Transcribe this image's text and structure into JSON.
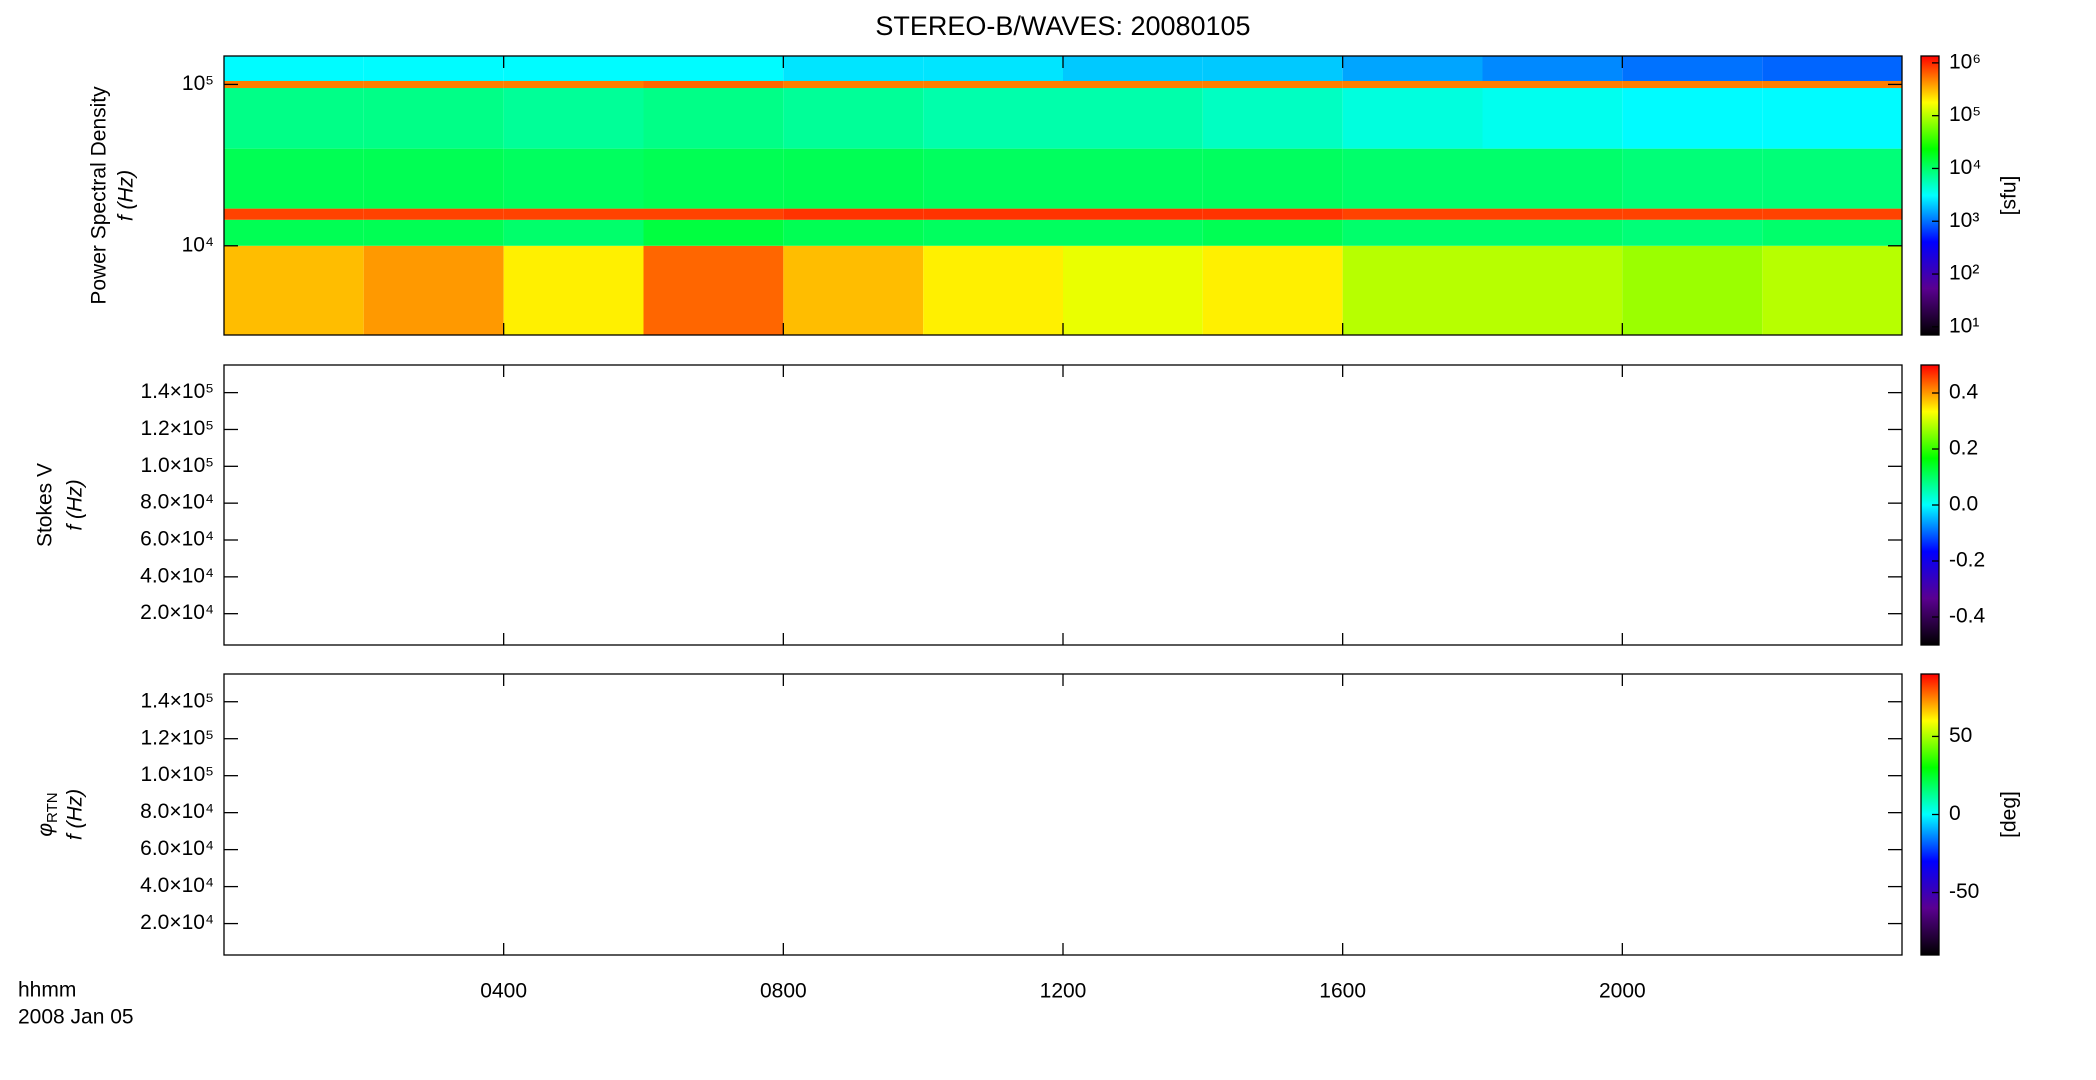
{
  "title": "STEREO-B/WAVES: 20080105",
  "x_label": [
    "hhmm",
    "2008 Jan 05"
  ],
  "xlim": [
    0,
    24
  ],
  "xticks": [
    {
      "value": 4,
      "label": "0400"
    },
    {
      "value": 8,
      "label": "0800"
    },
    {
      "value": 12,
      "label": "1200"
    },
    {
      "value": 16,
      "label": "1600"
    },
    {
      "value": 20,
      "label": "2000"
    }
  ],
  "colormap": [
    "#000000",
    "#5a0090",
    "#0000ff",
    "#00ffff",
    "#00ff00",
    "#ffff00",
    "#ff0000"
  ],
  "chart_data": [
    {
      "type": "heatmap",
      "y_label": [
        "Power Spectral Density",
        "f (Hz)"
      ],
      "log_y": true,
      "ylim": [
        2800,
        150000
      ],
      "yticks": [
        {
          "value": 10000,
          "label": "10⁴"
        },
        {
          "value": 100000,
          "label": "10⁵"
        }
      ],
      "colorbar": {
        "log": true,
        "clim": [
          7,
          1350000
        ],
        "label": "[sfu]",
        "ticks": [
          {
            "value": 10,
            "label": "10¹"
          },
          {
            "value": 100,
            "label": "10²"
          },
          {
            "value": 1000,
            "label": "10³"
          },
          {
            "value": 10000,
            "label": "10⁴"
          },
          {
            "value": 100000,
            "label": "10⁵"
          },
          {
            "value": 1000000,
            "label": "10⁶"
          }
        ]
      },
      "heatmap": {
        "time_edges": [
          0,
          2,
          4,
          6,
          8,
          10,
          12,
          14,
          16,
          18,
          20,
          22,
          24
        ],
        "frequency_edges": [
          2800,
          10000,
          14500,
          17000,
          40000,
          95000,
          105000,
          150000
        ],
        "values": [
          [
            300000,
            400000,
            200000,
            600000,
            300000,
            200000,
            150000,
            200000,
            100000,
            100000,
            80000,
            100000
          ],
          [
            12000,
            12000,
            10000,
            14000,
            12000,
            11000,
            11000,
            12000,
            10000,
            10000,
            9000,
            10000
          ],
          [
            800000,
            800000,
            800000,
            800000,
            900000,
            900000,
            900000,
            900000,
            800000,
            800000,
            800000,
            800000
          ],
          [
            12000,
            12000,
            11000,
            12000,
            12000,
            11000,
            11000,
            11000,
            10000,
            10000,
            9000,
            9000
          ],
          [
            8000,
            8000,
            7000,
            8000,
            7000,
            6000,
            6000,
            5000,
            4000,
            3500,
            3000,
            3000
          ],
          [
            500000,
            500000,
            500000,
            600000,
            500000,
            500000,
            500000,
            500000,
            500000,
            500000,
            500000,
            500000
          ],
          [
            3000,
            3000,
            3000,
            3000,
            2500,
            2500,
            2000,
            2000,
            1500,
            1200,
            1000,
            900
          ]
        ]
      }
    },
    {
      "type": "heatmap",
      "y_label": [
        "Stokes V",
        "f (Hz)"
      ],
      "ylim": [
        3000,
        155000
      ],
      "yticks": [
        {
          "value": 20000,
          "label": "2.0×10⁴"
        },
        {
          "value": 40000,
          "label": "4.0×10⁴"
        },
        {
          "value": 60000,
          "label": "6.0×10⁴"
        },
        {
          "value": 80000,
          "label": "8.0×10⁴"
        },
        {
          "value": 100000,
          "label": "1.0×10⁵"
        },
        {
          "value": 120000,
          "label": "1.2×10⁵"
        },
        {
          "value": 140000,
          "label": "1.4×10⁵"
        }
      ],
      "colorbar": {
        "clim": [
          -0.5,
          0.5
        ],
        "ticks": [
          -0.4,
          -0.2,
          {
            "value": 0,
            "label": "0.0"
          },
          0.2,
          0.4
        ]
      }
    },
    {
      "type": "heatmap",
      "y_label": [
        {
          "text": "φ",
          "sub": "RTN"
        },
        "f (Hz)"
      ],
      "ylim": [
        3000,
        155000
      ],
      "yticks": [
        {
          "value": 20000,
          "label": "2.0×10⁴"
        },
        {
          "value": 40000,
          "label": "4.0×10⁴"
        },
        {
          "value": 60000,
          "label": "6.0×10⁴"
        },
        {
          "value": 80000,
          "label": "8.0×10⁴"
        },
        {
          "value": 100000,
          "label": "1.0×10⁵"
        },
        {
          "value": 120000,
          "label": "1.2×10⁵"
        },
        {
          "value": 140000,
          "label": "1.4×10⁵"
        }
      ],
      "colorbar": {
        "clim": [
          -90,
          90
        ],
        "label": "[deg]",
        "ticks": [
          -50,
          0,
          50
        ]
      }
    }
  ]
}
